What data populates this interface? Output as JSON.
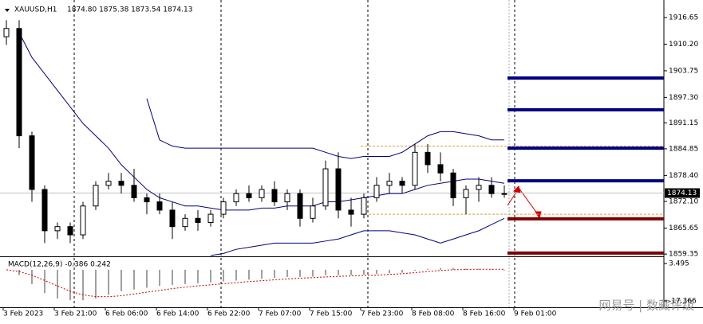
{
  "chart_data": {
    "type": "candlestick",
    "title": "XAUUSD,H1",
    "ohlc_text": "1874.80 1875.38 1873.54 1874.13",
    "x_labels": [
      "3 Feb 2023",
      "3 Feb 21:00",
      "6 Feb 06:00",
      "6 Feb 14:00",
      "6 Feb 22:00",
      "7 Feb 07:00",
      "7 Feb 15:00",
      "7 Feb 23:00",
      "8 Feb 08:00",
      "8 Feb 16:00",
      "9 Feb 01:00"
    ],
    "open": [
      1912,
      1914,
      1888,
      1875,
      1865,
      1866,
      1864,
      1871,
      1876,
      1877,
      1876,
      1873,
      1872,
      1870,
      1866,
      1868,
      1867,
      1869,
      1872,
      1874,
      1873,
      1875,
      1872,
      1874,
      1868,
      1871,
      1880,
      1870,
      1869,
      1873,
      1876,
      1877,
      1876,
      1884,
      1881,
      1879,
      1873,
      1875,
      1876,
      1874
    ],
    "high": [
      1916,
      1916,
      1889,
      1876,
      1867,
      1867,
      1872,
      1877,
      1879,
      1879,
      1880,
      1874,
      1874,
      1872,
      1869,
      1870,
      1870,
      1873,
      1875,
      1876,
      1876,
      1877,
      1875,
      1875,
      1873,
      1882,
      1884,
      1873,
      1874,
      1878,
      1879,
      1878,
      1886,
      1886,
      1884,
      1880,
      1876,
      1878,
      1878,
      1876
    ],
    "low": [
      1910,
      1885,
      1872,
      1862,
      1863,
      1862,
      1863,
      1870,
      1875,
      1874,
      1872,
      1869,
      1869,
      1863,
      1865,
      1865,
      1866,
      1868,
      1871,
      1872,
      1872,
      1871,
      1870,
      1866,
      1867,
      1870,
      1868,
      1866,
      1868,
      1872,
      1874,
      1874,
      1875,
      1879,
      1877,
      1871,
      1869,
      1872,
      1873,
      1873
    ],
    "close": [
      1914,
      1888,
      1875,
      1865,
      1866,
      1864,
      1871,
      1876,
      1877,
      1876,
      1873,
      1872,
      1870,
      1866,
      1868,
      1867,
      1869,
      1872,
      1874,
      1873,
      1875,
      1872,
      1874,
      1868,
      1871,
      1880,
      1870,
      1869,
      1873,
      1876,
      1877,
      1876,
      1884,
      1881,
      1879,
      1873,
      1875,
      1876,
      1874,
      1874
    ],
    "bands": {
      "upper": [
        null,
        null,
        null,
        null,
        null,
        null,
        null,
        null,
        null,
        null,
        null,
        1897,
        1887,
        1885.5,
        1885,
        1885,
        1885,
        1885,
        1885,
        1885,
        1885,
        1885,
        1885,
        1885,
        1885,
        1884,
        1883,
        1882.5,
        1883,
        1883,
        1883,
        1884,
        1886,
        1888,
        1889,
        1889,
        1888.5,
        1888,
        1887,
        1887
      ],
      "middle": [
        null,
        1913,
        1907,
        1903,
        1899,
        1895,
        1891,
        1888,
        1885,
        1881,
        1878,
        1875,
        1873,
        1872,
        1871,
        1871,
        1870.5,
        1870,
        1870,
        1870,
        1870.5,
        1870.5,
        1871,
        1871,
        1871,
        1872,
        1872,
        1872.5,
        1873,
        1873.5,
        1874,
        1874,
        1875,
        1876,
        1876.5,
        1877,
        1877.5,
        1877.5,
        1877,
        1876.5
      ],
      "lower": [
        null,
        null,
        null,
        null,
        null,
        null,
        null,
        null,
        null,
        null,
        null,
        null,
        null,
        null,
        null,
        null,
        1859,
        1859.5,
        1860.5,
        1861,
        1861.5,
        1862,
        1862,
        1862,
        1862,
        1862.5,
        1863,
        1864,
        1865,
        1865,
        1865,
        1864.5,
        1864,
        1863,
        1862,
        1863,
        1864,
        1865,
        1866.5,
        1868
      ]
    },
    "levels": [
      {
        "value": 1902,
        "color": "#000080"
      },
      {
        "value": 1894.3,
        "color": "#000080"
      },
      {
        "value": 1885,
        "color": "#000080"
      },
      {
        "value": 1877.1,
        "color": "#000080"
      },
      {
        "value": 1867.9,
        "color": "#7f0000"
      },
      {
        "value": 1859.6,
        "color": "#7f0000"
      }
    ],
    "guides": [
      1885.5,
      1869
    ],
    "current_price": {
      "value": 1874.13,
      "label": "1874.13"
    },
    "ylim": [
      1858.8,
      1920.9
    ],
    "yticks": [
      1916.65,
      {
        "value": 1910.2,
        "label": "1910.20"
      },
      1903.75,
      {
        "value": 1897.3,
        "label": "1897.30"
      },
      1891.15,
      1884.85,
      {
        "value": 1878.4,
        "label": "1878.40"
      },
      {
        "value": 1872.1,
        "label": "1872.10"
      },
      1865.65,
      1859.35
    ],
    "macd": {
      "title": "MACD(12,26,9) -0.386 0.242",
      "histogram": [
        0,
        -3,
        -8,
        -13,
        -16,
        -17,
        -17,
        -16,
        -14,
        -12,
        -11,
        -10,
        -9,
        -8.5,
        -8,
        -7.5,
        -7,
        -6.5,
        -6,
        -5.5,
        -5,
        -4.5,
        -4,
        -4,
        -3.8,
        -3,
        -3,
        -3,
        -2.8,
        -2.4,
        -2,
        -1.6,
        -0.5,
        0.5,
        1,
        1,
        0.6,
        0.5,
        0.3,
        -0.4
      ],
      "signal": [
        0,
        -1,
        -3,
        -6,
        -9,
        -12,
        -14,
        -15,
        -15,
        -14.5,
        -13.5,
        -12.5,
        -11.5,
        -10.5,
        -9.7,
        -9,
        -8.4,
        -7.8,
        -7.2,
        -6.6,
        -6.1,
        -5.6,
        -5.1,
        -4.7,
        -4.4,
        -4,
        -3.7,
        -3.4,
        -3.2,
        -3,
        -2.6,
        -2.2,
        -1.6,
        -1,
        -0.4,
        0,
        0.2,
        0.3,
        0.3,
        0.24
      ],
      "ylim": [
        -20.47,
        6.16
      ],
      "yticks": [
        3.495,
        -17.366
      ]
    },
    "watermark": "网易号 | 数藏评级"
  }
}
